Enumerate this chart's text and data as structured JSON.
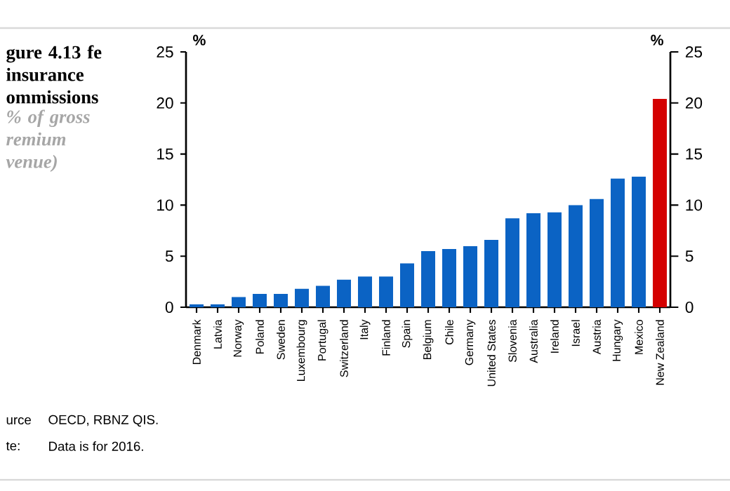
{
  "chart_data": {
    "type": "bar",
    "title": "gure 4.13 fe insurance ommissions",
    "subtitle": "% of gross remium venue)",
    "ylabel": "%",
    "y2label": "%",
    "categories": [
      "Denmark",
      "Latvia",
      "Norway",
      "Poland",
      "Sweden",
      "Luxembourg",
      "Portugal",
      "Switzerland",
      "Italy",
      "Finland",
      "Spain",
      "Belgium",
      "Chile",
      "Germany",
      "United States",
      "Slovenia",
      "Australia",
      "Ireland",
      "Israel",
      "Austria",
      "Hungary",
      "Mexico",
      "New Zealand"
    ],
    "values": [
      0.3,
      0.3,
      1.0,
      1.3,
      1.3,
      1.8,
      2.1,
      2.7,
      3.0,
      3.0,
      4.3,
      5.5,
      5.7,
      6.0,
      6.6,
      8.7,
      9.2,
      9.3,
      10.0,
      10.6,
      12.6,
      12.8,
      20.4
    ],
    "colors": [
      "#0b63c4",
      "#0b63c4",
      "#0b63c4",
      "#0b63c4",
      "#0b63c4",
      "#0b63c4",
      "#0b63c4",
      "#0b63c4",
      "#0b63c4",
      "#0b63c4",
      "#0b63c4",
      "#0b63c4",
      "#0b63c4",
      "#0b63c4",
      "#0b63c4",
      "#0b63c4",
      "#0b63c4",
      "#0b63c4",
      "#0b63c4",
      "#0b63c4",
      "#0b63c4",
      "#0b63c4",
      "#d40000"
    ],
    "ylim": [
      0,
      25
    ],
    "yticks": [
      0,
      5,
      10,
      15,
      20,
      25
    ],
    "y2lim": [
      0,
      25
    ],
    "y2ticks": [
      0,
      5,
      10,
      15,
      20,
      25
    ],
    "annotations": [
      "urce",
      "OECD, RBNZ QIS.",
      "te:",
      "Data is for 2016."
    ]
  }
}
